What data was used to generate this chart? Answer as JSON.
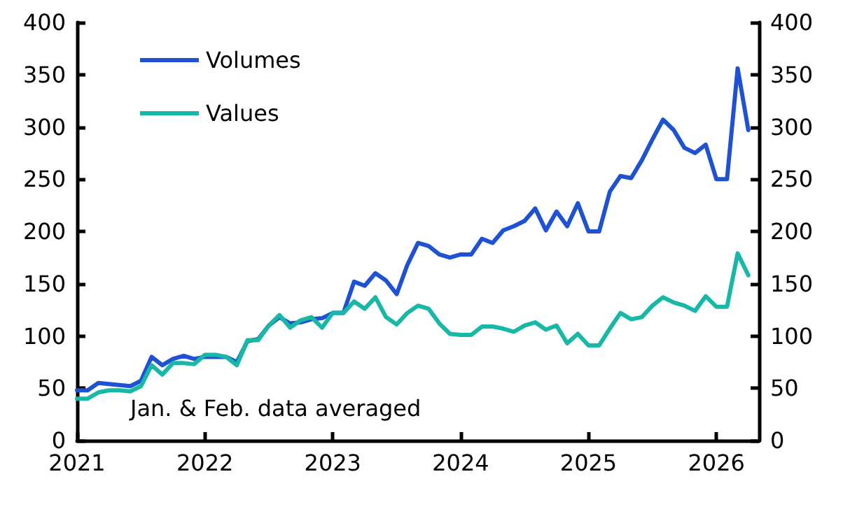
{
  "chart_data": {
    "type": "line",
    "x": [
      "2021-01",
      "2021-02",
      "2021-03",
      "2021-04",
      "2021-05",
      "2021-06",
      "2021-07",
      "2021-08",
      "2021-09",
      "2021-10",
      "2021-11",
      "2021-12",
      "2022-01",
      "2022-02",
      "2022-03",
      "2022-04",
      "2022-05",
      "2022-06",
      "2022-07",
      "2022-08",
      "2022-09",
      "2022-10",
      "2022-11",
      "2022-12",
      "2023-01",
      "2023-02",
      "2023-03",
      "2023-04",
      "2023-05",
      "2023-06",
      "2023-07",
      "2023-08",
      "2023-09",
      "2023-10",
      "2023-11",
      "2023-12",
      "2024-01",
      "2024-02",
      "2024-03",
      "2024-04",
      "2024-05",
      "2024-06",
      "2024-07",
      "2024-08",
      "2024-09",
      "2024-10",
      "2024-11",
      "2024-12",
      "2025-01",
      "2025-02",
      "2025-03",
      "2025-04",
      "2025-05",
      "2025-06",
      "2025-07",
      "2025-08",
      "2025-09",
      "2025-10",
      "2025-11",
      "2025-12",
      "2026-01",
      "2026-02",
      "2026-03",
      "2026-04"
    ],
    "series": [
      {
        "name": "Volumes",
        "color": "#1f52d3",
        "values": [
          48,
          48,
          55,
          54,
          53,
          52,
          57,
          80,
          72,
          78,
          81,
          78,
          80,
          80,
          80,
          75,
          95,
          97,
          110,
          118,
          112,
          113,
          116,
          117,
          122,
          122,
          152,
          148,
          160,
          153,
          140,
          168,
          189,
          186,
          178,
          175,
          178,
          178,
          193,
          189,
          201,
          205,
          210,
          222,
          201,
          219,
          205,
          227,
          200,
          200,
          238,
          253,
          251,
          268,
          288,
          307,
          297,
          280,
          275,
          283,
          250,
          250,
          356,
          297
        ]
      },
      {
        "name": "Values",
        "color": "#17b8a6",
        "values": [
          40,
          40,
          46,
          48,
          48,
          47,
          52,
          72,
          63,
          74,
          74,
          73,
          82,
          82,
          80,
          72,
          96,
          96,
          110,
          120,
          108,
          115,
          118,
          108,
          122,
          122,
          133,
          126,
          137,
          118,
          111,
          122,
          129,
          126,
          112,
          102,
          101,
          101,
          109,
          109,
          107,
          104,
          110,
          113,
          106,
          110,
          93,
          102,
          91,
          91,
          107,
          122,
          116,
          118,
          129,
          137,
          132,
          129,
          124,
          138,
          128,
          128,
          179,
          158
        ]
      }
    ],
    "xlim": [
      "2021-01",
      "2026-05"
    ],
    "xticks": [
      "2021",
      "2022",
      "2023",
      "2024",
      "2025",
      "2026"
    ],
    "ylim": [
      0,
      400
    ],
    "yticks": [
      0,
      50,
      100,
      150,
      200,
      250,
      300,
      350,
      400
    ],
    "y2lim": [
      0,
      400
    ],
    "y2ticks": [
      0,
      50,
      100,
      150,
      200,
      250,
      300,
      350,
      400
    ],
    "annotations": [
      "Jan. & Feb. data averaged"
    ],
    "legend": "top left",
    "grid": false,
    "marker": "none",
    "line_style": "solid"
  }
}
